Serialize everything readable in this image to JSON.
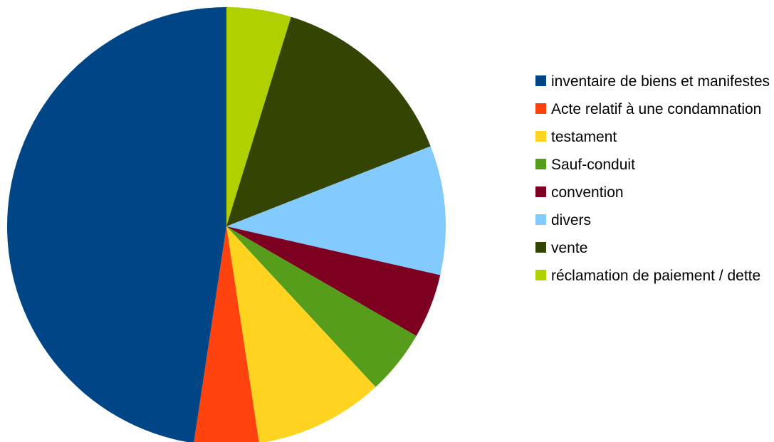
{
  "chart_data": {
    "type": "pie",
    "title": "",
    "start_angle": "top, clockwise",
    "legend_position": "right",
    "slices": [
      {
        "label": "réclamation de paiement / dette",
        "value": 1,
        "color": "#b0d000"
      },
      {
        "label": "vente",
        "value": 3,
        "color": "#334403"
      },
      {
        "label": "divers",
        "value": 2,
        "color": "#83caff"
      },
      {
        "label": "convention",
        "value": 1,
        "color": "#7e0021"
      },
      {
        "label": "Sauf-conduit",
        "value": 1,
        "color": "#579d1c"
      },
      {
        "label": "testament",
        "value": 2,
        "color": "#ffd320"
      },
      {
        "label": "Acte relatif à une condamnation",
        "value": 1,
        "color": "#ff420e"
      },
      {
        "label": "inventaire de biens et manifestes",
        "value": 10,
        "color": "#004586"
      }
    ],
    "legend": [
      {
        "label": "inventaire de biens et manifestes",
        "color": "#004586"
      },
      {
        "label": "Acte relatif à une condamnation",
        "color": "#ff420e"
      },
      {
        "label": "testament",
        "color": "#ffd320"
      },
      {
        "label": "Sauf-conduit",
        "color": "#579d1c"
      },
      {
        "label": "convention",
        "color": "#7e0021"
      },
      {
        "label": "divers",
        "color": "#83caff"
      },
      {
        "label": "vente",
        "color": "#334403"
      },
      {
        "label": "réclamation de paiement / dette",
        "color": "#b0d000"
      }
    ]
  }
}
